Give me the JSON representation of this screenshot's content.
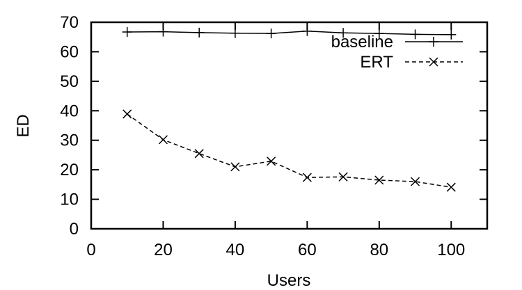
{
  "chart_data": {
    "type": "line",
    "title": "",
    "xlabel": "Users",
    "ylabel": "ED",
    "xlim": [
      0,
      110
    ],
    "ylim": [
      0,
      70
    ],
    "x_ticks": [
      0,
      20,
      40,
      60,
      80,
      100
    ],
    "y_ticks": [
      0,
      10,
      20,
      30,
      40,
      50,
      60,
      70
    ],
    "grid": false,
    "legend_position": "top-right-inside",
    "x": [
      10,
      20,
      30,
      40,
      50,
      60,
      70,
      80,
      90,
      100
    ],
    "series": [
      {
        "name": "baseline",
        "style": "solid",
        "marker": "plus",
        "color": "#000000",
        "values": [
          66.7,
          66.8,
          66.5,
          66.3,
          66.2,
          67.0,
          66.4,
          66.2,
          65.9,
          65.8
        ]
      },
      {
        "name": "ERT",
        "style": "dashed",
        "marker": "cross",
        "color": "#000000",
        "values": [
          38.9,
          30.2,
          25.5,
          21.0,
          22.9,
          17.4,
          17.6,
          16.5,
          16.0,
          14.1
        ]
      }
    ]
  }
}
